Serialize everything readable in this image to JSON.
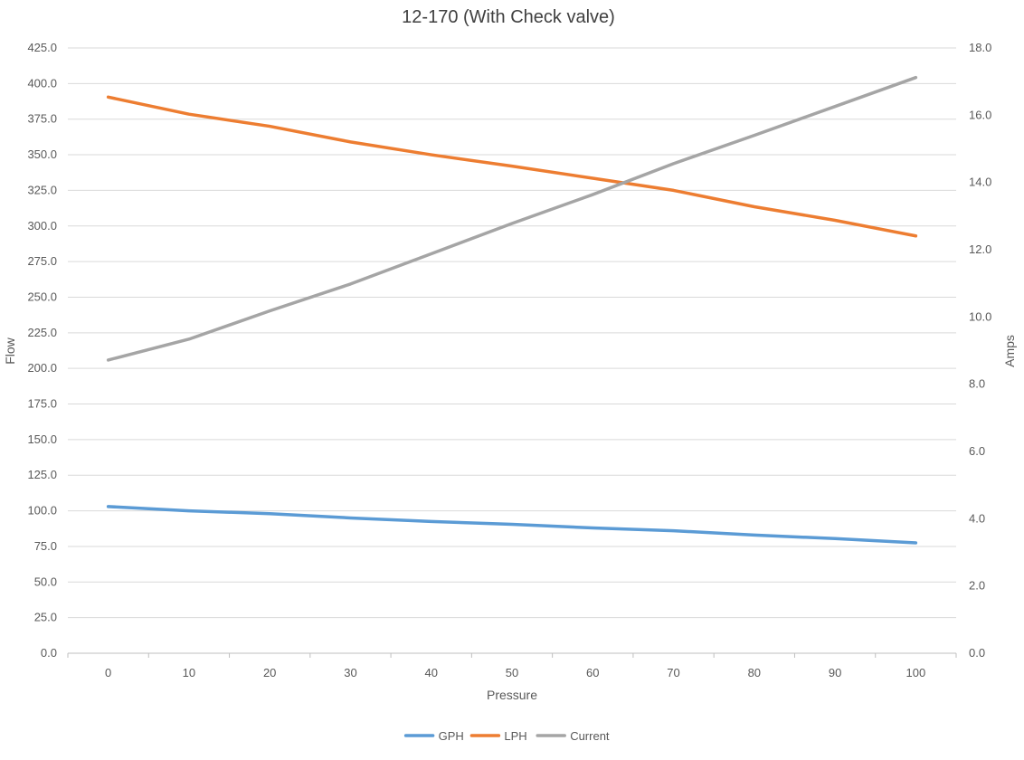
{
  "chart_data": {
    "type": "line",
    "title": "12-170 (With Check valve)",
    "xlabel": "Pressure",
    "ylabel": "Flow",
    "y2label": "Amps",
    "x": [
      0,
      10,
      20,
      30,
      40,
      50,
      60,
      70,
      80,
      90,
      100
    ],
    "x_tick_labels": [
      "0",
      "10",
      "20",
      "30",
      "40",
      "50",
      "60",
      "70",
      "80",
      "90",
      "100"
    ],
    "ylim": [
      0,
      425
    ],
    "y_ticks": [
      0,
      25,
      50,
      75,
      100,
      125,
      150,
      175,
      200,
      225,
      250,
      275,
      300,
      325,
      350,
      375,
      400,
      425
    ],
    "y_tick_labels": [
      "0.0",
      "25.0",
      "50.0",
      "75.0",
      "100.0",
      "125.0",
      "150.0",
      "175.0",
      "200.0",
      "225.0",
      "250.0",
      "275.0",
      "300.0",
      "325.0",
      "350.0",
      "375.0",
      "400.0",
      "425.0"
    ],
    "y2lim": [
      0,
      18
    ],
    "y2_ticks": [
      0,
      2,
      4,
      6,
      8,
      10,
      12,
      14,
      16,
      18
    ],
    "y2_tick_labels": [
      "0.0",
      "2.0",
      "4.0",
      "6.0",
      "8.0",
      "10.0",
      "12.0",
      "14.0",
      "16.0",
      "18.0"
    ],
    "grid": true,
    "legend_position": "bottom",
    "series": [
      {
        "name": "GPH",
        "axis": "left",
        "color": "#5b9bd5",
        "values": [
          103,
          100,
          98,
          95,
          92.5,
          90.5,
          88,
          86,
          83,
          80.5,
          77.5
        ]
      },
      {
        "name": "LPH",
        "axis": "left",
        "color": "#ed7d31",
        "values": [
          390.5,
          378.5,
          370,
          359,
          350,
          342,
          333.5,
          325,
          313.5,
          304,
          293
        ]
      },
      {
        "name": "Current",
        "axis": "right",
        "color": "#a5a5a5",
        "values": [
          8.72,
          9.34,
          10.18,
          10.98,
          11.88,
          12.78,
          13.64,
          14.56,
          15.4,
          16.26,
          17.12
        ]
      }
    ]
  }
}
